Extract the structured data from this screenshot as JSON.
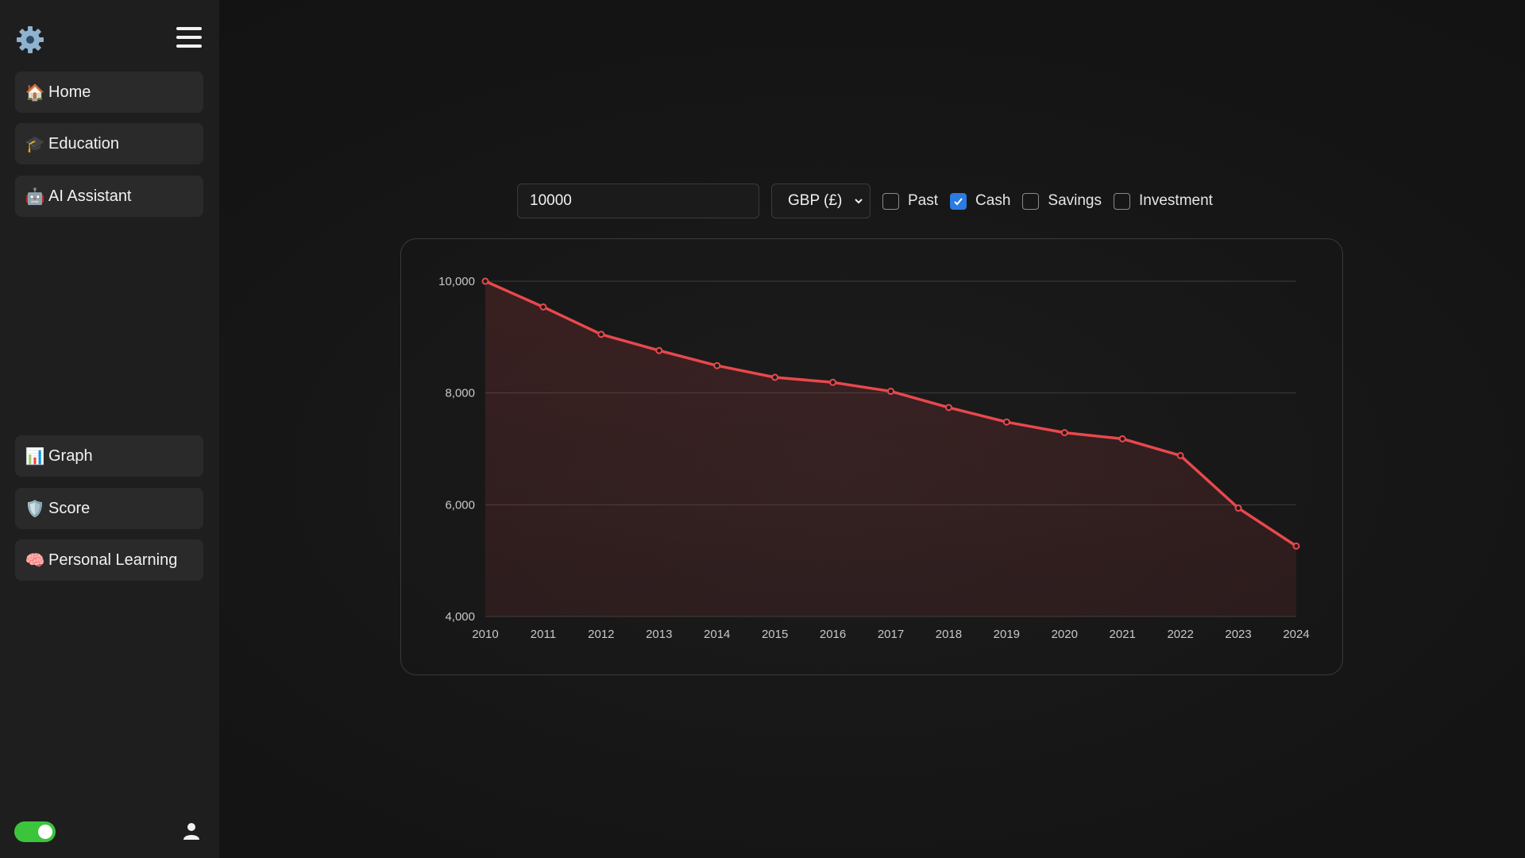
{
  "sidebar": {
    "gear_icon": "gear-icon",
    "menu_icon": "hamburger-menu-icon",
    "top_items": [
      {
        "emoji": "🏠",
        "label": "Home"
      },
      {
        "emoji": "🎓",
        "label": "Education"
      },
      {
        "emoji": "🤖",
        "label": "AI Assistant"
      }
    ],
    "bottom_items": [
      {
        "emoji": "📊",
        "label": "Graph"
      },
      {
        "emoji": "🛡️",
        "label": "Score"
      },
      {
        "emoji": "🧠",
        "label": "Personal Learning"
      }
    ],
    "theme_toggle_on": true,
    "user_icon": "user-icon"
  },
  "controls": {
    "amount_value": "10000",
    "currency": "GBP (£)",
    "checkboxes": [
      {
        "label": "Past",
        "checked": false
      },
      {
        "label": "Cash",
        "checked": true
      },
      {
        "label": "Savings",
        "checked": false
      },
      {
        "label": "Investment",
        "checked": false
      }
    ]
  },
  "colors": {
    "line": "#e8484d",
    "accent_checkbox": "#2b7be4",
    "toggle": "#3cc43c"
  },
  "chart_data": {
    "type": "area",
    "x": [
      "2010",
      "2011",
      "2012",
      "2013",
      "2014",
      "2015",
      "2016",
      "2017",
      "2018",
      "2019",
      "2020",
      "2021",
      "2022",
      "2023",
      "2024"
    ],
    "series": [
      {
        "values": [
          10000,
          9540,
          9050,
          8760,
          8490,
          8280,
          8190,
          8030,
          7740,
          7480,
          7290,
          7180,
          6880,
          5940,
          5260
        ]
      }
    ],
    "y_ticks": [
      "10,000",
      "8,000",
      "6,000",
      "4,000"
    ],
    "ylim": [
      4000,
      10000
    ],
    "grid": true,
    "legend": "none"
  }
}
